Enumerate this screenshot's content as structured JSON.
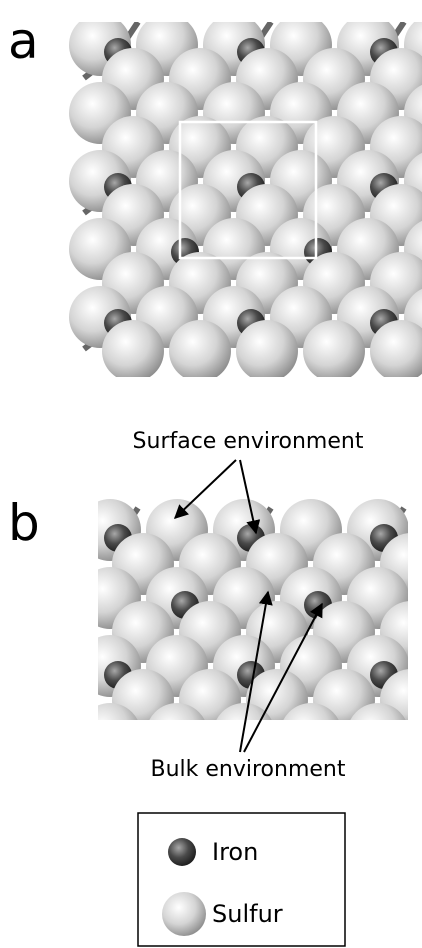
{
  "panels": [
    {
      "label": "a"
    },
    {
      "label": "b",
      "annotations": [
        "Surface environment",
        "Bulk environment"
      ]
    }
  ],
  "legend": {
    "items": [
      {
        "label": "Iron"
      },
      {
        "label": "Sulfur"
      }
    ]
  }
}
